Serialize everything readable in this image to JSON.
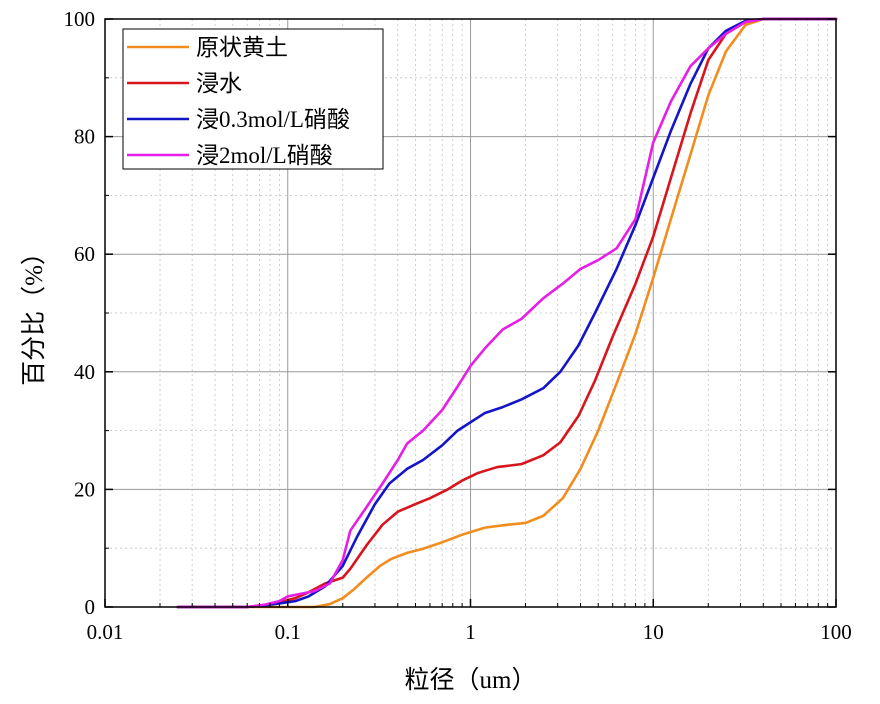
{
  "chart_data": {
    "type": "line",
    "xlabel": "粒径（um）",
    "ylabel": "百分比（%）",
    "x_scale": "log",
    "xlim": [
      0.01,
      100
    ],
    "ylim": [
      0,
      100
    ],
    "x_ticks": [
      "0.01",
      "0.1",
      "1",
      "10",
      "100"
    ],
    "y_ticks": [
      "0",
      "20",
      "40",
      "60",
      "80",
      "100"
    ],
    "grid": true,
    "legend_position": "top-left",
    "series": [
      {
        "name": "原状黄土",
        "color": "#f28c1e",
        "points": [
          [
            0.025,
            0
          ],
          [
            0.05,
            0
          ],
          [
            0.1,
            0
          ],
          [
            0.14,
            0
          ],
          [
            0.17,
            0.5
          ],
          [
            0.2,
            1.5
          ],
          [
            0.23,
            3
          ],
          [
            0.27,
            5
          ],
          [
            0.32,
            7
          ],
          [
            0.37,
            8.2
          ],
          [
            0.45,
            9.2
          ],
          [
            0.55,
            9.9
          ],
          [
            0.7,
            11
          ],
          [
            0.9,
            12.3
          ],
          [
            1.2,
            13.5
          ],
          [
            1.6,
            14
          ],
          [
            2,
            14.3
          ],
          [
            2.5,
            15.5
          ],
          [
            3.2,
            18.5
          ],
          [
            4,
            23.5
          ],
          [
            5,
            30
          ],
          [
            6.3,
            38
          ],
          [
            8,
            46.5
          ],
          [
            10,
            56
          ],
          [
            12.5,
            66
          ],
          [
            16,
            77
          ],
          [
            20,
            87
          ],
          [
            25,
            94.5
          ],
          [
            32,
            99
          ],
          [
            40,
            100
          ],
          [
            60,
            100
          ],
          [
            100,
            100
          ]
        ]
      },
      {
        "name": "浸水",
        "color": "#d8141c",
        "points": [
          [
            0.025,
            0
          ],
          [
            0.06,
            0
          ],
          [
            0.075,
            0.3
          ],
          [
            0.09,
            0.8
          ],
          [
            0.11,
            1.5
          ],
          [
            0.13,
            2.5
          ],
          [
            0.16,
            4
          ],
          [
            0.2,
            5
          ],
          [
            0.22,
            6.5
          ],
          [
            0.27,
            10.5
          ],
          [
            0.33,
            14
          ],
          [
            0.4,
            16.2
          ],
          [
            0.5,
            17.5
          ],
          [
            0.6,
            18.5
          ],
          [
            0.75,
            20
          ],
          [
            0.9,
            21.5
          ],
          [
            1.1,
            22.8
          ],
          [
            1.4,
            23.8
          ],
          [
            1.9,
            24.3
          ],
          [
            2.5,
            25.8
          ],
          [
            3.1,
            28
          ],
          [
            3.9,
            32.5
          ],
          [
            4.8,
            38.5
          ],
          [
            6,
            46
          ],
          [
            8,
            55
          ],
          [
            10,
            63
          ],
          [
            12.5,
            73
          ],
          [
            16,
            84
          ],
          [
            20,
            93
          ],
          [
            25,
            97.5
          ],
          [
            32,
            99.5
          ],
          [
            40,
            100
          ],
          [
            100,
            100
          ]
        ]
      },
      {
        "name": "浸0.3mol/L硝酸",
        "color": "#1414c8",
        "points": [
          [
            0.025,
            0
          ],
          [
            0.06,
            0
          ],
          [
            0.075,
            0.3
          ],
          [
            0.09,
            0.6
          ],
          [
            0.11,
            1
          ],
          [
            0.13,
            1.8
          ],
          [
            0.16,
            3.5
          ],
          [
            0.2,
            7
          ],
          [
            0.24,
            12
          ],
          [
            0.3,
            17.5
          ],
          [
            0.36,
            21
          ],
          [
            0.45,
            23.5
          ],
          [
            0.55,
            25
          ],
          [
            0.7,
            27.5
          ],
          [
            0.85,
            30
          ],
          [
            1.2,
            33
          ],
          [
            1.5,
            34
          ],
          [
            1.9,
            35.3
          ],
          [
            2.5,
            37.2
          ],
          [
            3.1,
            40
          ],
          [
            3.9,
            44.5
          ],
          [
            4.8,
            50
          ],
          [
            6.3,
            57.5
          ],
          [
            8,
            65
          ],
          [
            10,
            73
          ],
          [
            12.5,
            81
          ],
          [
            16,
            89
          ],
          [
            20,
            95
          ],
          [
            25,
            98
          ],
          [
            32,
            99.7
          ],
          [
            40,
            100
          ],
          [
            100,
            100
          ]
        ]
      },
      {
        "name": "浸2mol/L硝酸",
        "color": "#e61ee6",
        "points": [
          [
            0.025,
            0
          ],
          [
            0.06,
            0
          ],
          [
            0.075,
            0.4
          ],
          [
            0.09,
            1
          ],
          [
            0.1,
            1.8
          ],
          [
            0.12,
            2.3
          ],
          [
            0.14,
            2.7
          ],
          [
            0.17,
            4
          ],
          [
            0.2,
            8
          ],
          [
            0.22,
            13
          ],
          [
            0.27,
            17
          ],
          [
            0.33,
            21
          ],
          [
            0.4,
            25
          ],
          [
            0.45,
            27.8
          ],
          [
            0.55,
            30
          ],
          [
            0.7,
            33.5
          ],
          [
            0.85,
            37.5
          ],
          [
            1,
            41
          ],
          [
            1.2,
            44
          ],
          [
            1.5,
            47.2
          ],
          [
            1.9,
            49
          ],
          [
            2.5,
            52.5
          ],
          [
            3.2,
            55
          ],
          [
            4,
            57.5
          ],
          [
            5,
            59
          ],
          [
            6.3,
            61
          ],
          [
            8,
            66
          ],
          [
            10,
            79
          ],
          [
            12.5,
            86
          ],
          [
            16,
            92
          ],
          [
            20,
            95
          ],
          [
            25,
            97.5
          ],
          [
            32,
            99.5
          ],
          [
            40,
            100
          ],
          [
            100,
            100
          ]
        ]
      }
    ]
  }
}
